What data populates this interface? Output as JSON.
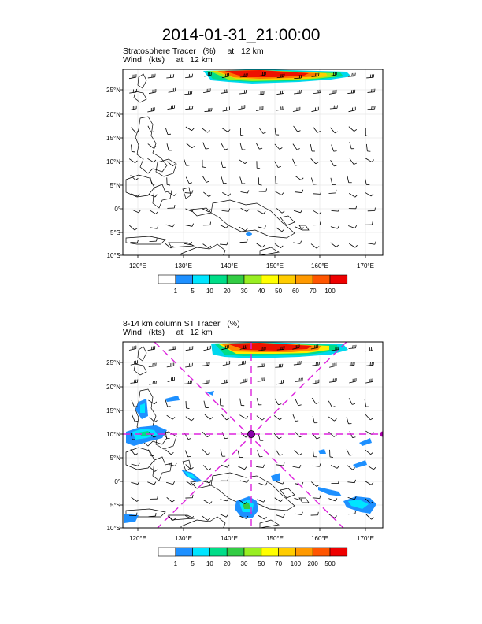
{
  "title": "2014-01-31_21:00:00",
  "panel1": {
    "line1": "Stratosphere Tracer   (%)     at   12 km",
    "line2": "Wind   (kts)     at   12 km",
    "lon_labels": [
      "120°E",
      "130°E",
      "140°E",
      "150°E",
      "160°E",
      "170°E"
    ],
    "lat_labels": [
      "25°N",
      "20°N",
      "15°N",
      "10°N",
      "5°N",
      "0°",
      "5°S",
      "10°S"
    ],
    "legend_labels": [
      "1",
      "5",
      "10",
      "20",
      "30",
      "40",
      "50",
      "60",
      "70",
      "100"
    ],
    "legend_colors": [
      "#ffffff",
      "#1e90ff",
      "#00e5ff",
      "#00dd88",
      "#33cc44",
      "#99ee22",
      "#ffff00",
      "#ffcc00",
      "#ff9900",
      "#ff5500",
      "#ee0000"
    ]
  },
  "panel2": {
    "line1": "8-14 km column ST Tracer   (%)",
    "line2": "Wind   (kts)     at   12 km",
    "lon_labels": [
      "120°E",
      "130°E",
      "140°E",
      "150°E",
      "160°E",
      "170°E"
    ],
    "lat_labels": [
      "25°N",
      "20°N",
      "15°N",
      "10°N",
      "5°N",
      "0°",
      "5°S",
      "10°S"
    ],
    "legend_labels": [
      "1",
      "5",
      "10",
      "20",
      "30",
      "50",
      "70",
      "100",
      "200",
      "500"
    ],
    "legend_colors": [
      "#ffffff",
      "#1e90ff",
      "#00e5ff",
      "#00dd88",
      "#33cc44",
      "#99ee22",
      "#ffff00",
      "#ffcc00",
      "#ff9900",
      "#ff5500",
      "#ee0000"
    ],
    "marker_colors": {
      "cross": "#dd22dd",
      "center": "#8800aa"
    }
  }
}
